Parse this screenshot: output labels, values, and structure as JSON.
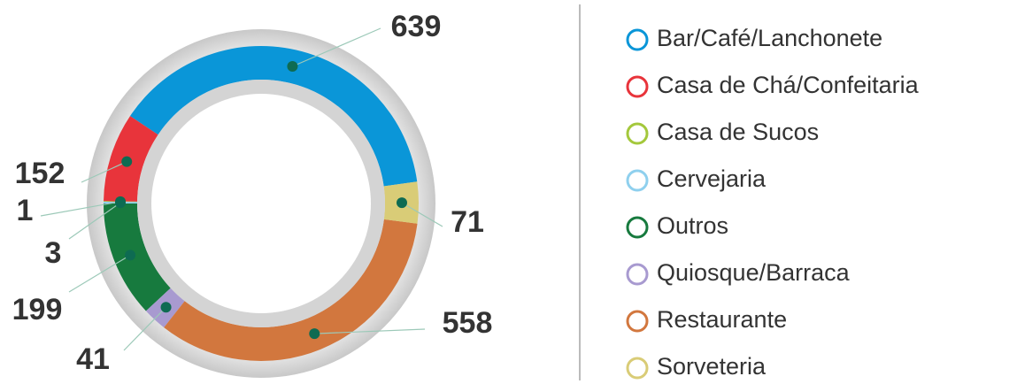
{
  "chart_data": {
    "type": "donut",
    "categories": [
      "Bar/Café/Lanchonete",
      "Casa de Chá/Confeitaria",
      "Casa de Sucos",
      "Cervejaria",
      "Outros",
      "Quiosque/Barraca",
      "Restaurante",
      "Sorveteria"
    ],
    "values": [
      639,
      152,
      1,
      3,
      199,
      41,
      558,
      71
    ],
    "colors": [
      "#0a96d8",
      "#e8343b",
      "#a4c83c",
      "#8fd0ee",
      "#177a3e",
      "#a89ad0",
      "#d2773e",
      "#d9cc77"
    ],
    "legend": "right"
  }
}
